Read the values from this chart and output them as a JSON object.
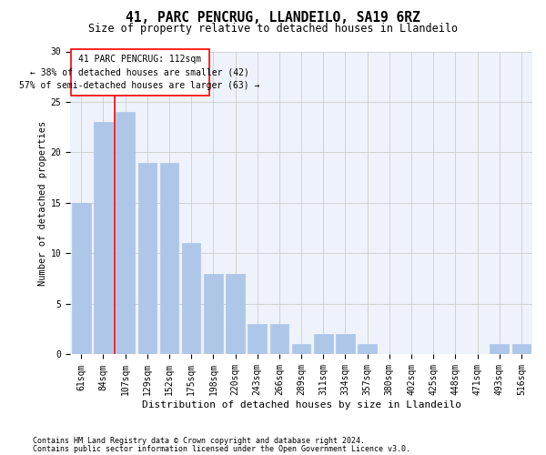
{
  "title1": "41, PARC PENCRUG, LLANDEILO, SA19 6RZ",
  "title2": "Size of property relative to detached houses in Llandeilo",
  "xlabel": "Distribution of detached houses by size in Llandeilo",
  "ylabel": "Number of detached properties",
  "categories": [
    "61sqm",
    "84sqm",
    "107sqm",
    "129sqm",
    "152sqm",
    "175sqm",
    "198sqm",
    "220sqm",
    "243sqm",
    "266sqm",
    "289sqm",
    "311sqm",
    "334sqm",
    "357sqm",
    "380sqm",
    "402sqm",
    "425sqm",
    "448sqm",
    "471sqm",
    "493sqm",
    "516sqm"
  ],
  "values": [
    15,
    23,
    24,
    19,
    19,
    11,
    8,
    8,
    3,
    3,
    1,
    2,
    2,
    1,
    0,
    0,
    0,
    0,
    0,
    1,
    1
  ],
  "bar_color": "#aec6e8",
  "bar_edgecolor": "#aec6e8",
  "redline_x": 1.5,
  "annotation_line1": "41 PARC PENCRUG: 112sqm",
  "annotation_line2": "← 38% of detached houses are smaller (42)",
  "annotation_line3": "57% of semi-detached houses are larger (63) →",
  "footer1": "Contains HM Land Registry data © Crown copyright and database right 2024.",
  "footer2": "Contains public sector information licensed under the Open Government Licence v3.0.",
  "ylim": [
    0,
    30
  ],
  "yticks": [
    0,
    5,
    10,
    15,
    20,
    25,
    30
  ],
  "bg_color": "#eef2fb",
  "grid_color": "#cccccc",
  "title1_fontsize": 10.5,
  "title2_fontsize": 8.5,
  "xlabel_fontsize": 8,
  "ylabel_fontsize": 7.5,
  "tick_fontsize": 7,
  "annot_fontsize": 7,
  "footer_fontsize": 6
}
